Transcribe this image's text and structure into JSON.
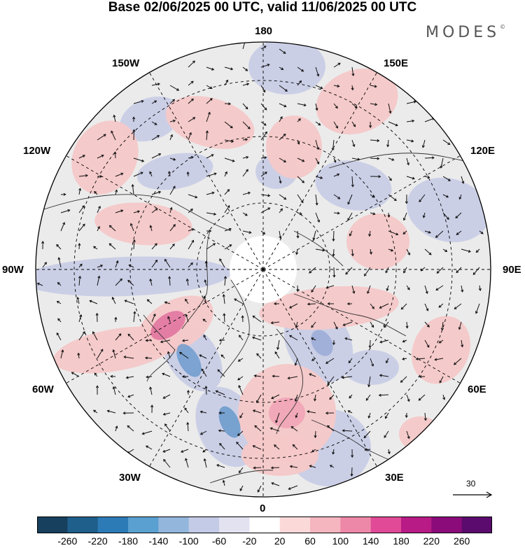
{
  "title": "Base 02/06/2025 00 UTC, valid 11/06/2025 00 UTC",
  "brand": "MODES",
  "brand_mark": "©",
  "longitude_labels": {
    "top": "180",
    "bottom": "0",
    "left": "90W",
    "right": "90E",
    "upper_left_outer": "150W",
    "upper_left_inner": "120W",
    "upper_right_outer": "150E",
    "upper_right_inner": "120E",
    "lower_left_outer": "30W",
    "lower_left_inner": "60W",
    "lower_right_outer": "30E",
    "lower_right_inner": "60E"
  },
  "reference_vector": {
    "label": "30"
  },
  "colorbar": {
    "ticks": [
      "-260",
      "-220",
      "-180",
      "-140",
      "-100",
      "-60",
      "-20",
      "20",
      "60",
      "100",
      "140",
      "180",
      "220",
      "260"
    ],
    "colors": [
      "#17405e",
      "#1f5f8b",
      "#2c7bb6",
      "#5aa0d1",
      "#93b6dc",
      "#c3cbe6",
      "#e2e2f1",
      "#ffffff",
      "#fbd9d9",
      "#f5b6c0",
      "#ee88a8",
      "#e04a97",
      "#b81b85",
      "#8b0b7a",
      "#5b0a6e"
    ]
  },
  "map": {
    "background_color": "#ebebeb",
    "pole_color": "#ffffff",
    "anomaly_positive": "#f6c8c8",
    "anomaly_negative": "#c9cde6",
    "anomaly_strong_positive": "#e06a9a",
    "anomaly_strong_negative": "#6e9bcc"
  }
}
